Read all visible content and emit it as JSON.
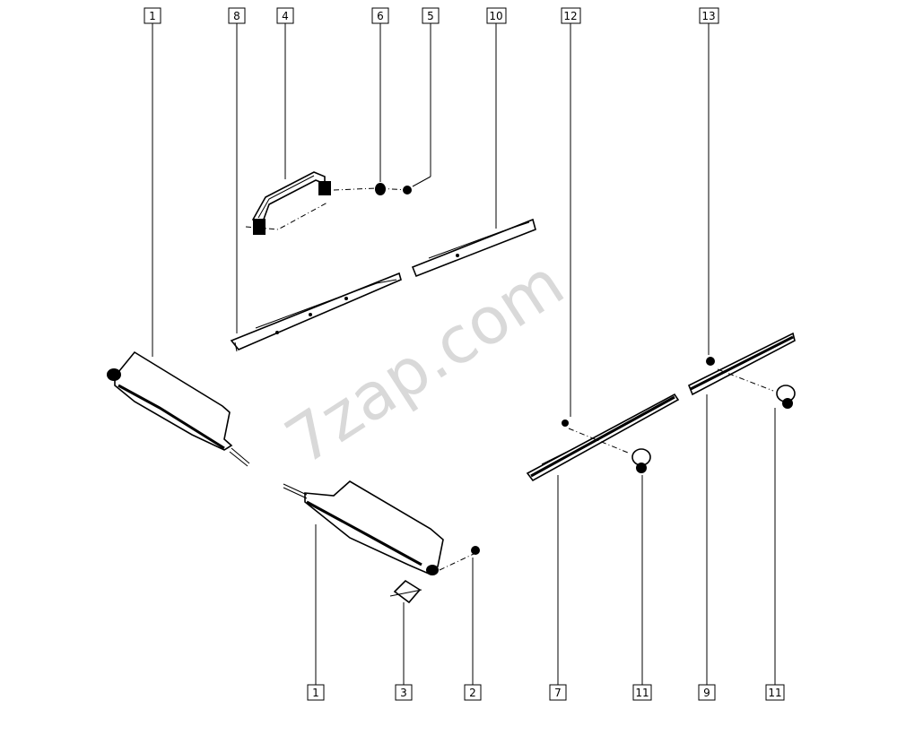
{
  "watermark": "7zap.com",
  "callouts": [
    "1",
    "8",
    "4",
    "6",
    "5",
    "10",
    "12",
    "13",
    "1",
    "3",
    "2",
    "7",
    "11",
    "9",
    "11"
  ]
}
